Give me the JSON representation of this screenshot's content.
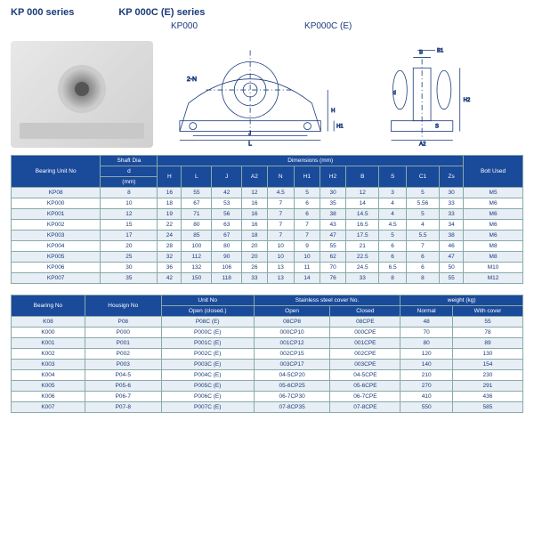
{
  "titles": {
    "t1": "KP 000 series",
    "t2": "KP 000C (E) series",
    "s1": "KP000",
    "s2": "KP000C (E)"
  },
  "table1": {
    "h1": [
      "Bearing Unit No",
      "Shaft Dia",
      "Dimensions (mm)",
      "Bolt Used"
    ],
    "h2": [
      "",
      "d",
      "H",
      "L",
      "J",
      "A2",
      "N",
      "H1",
      "H2",
      "B",
      "S",
      "C1",
      "Zs",
      ""
    ],
    "h3": [
      "",
      "(mm)",
      "",
      "",
      "",
      "",
      "",
      "",
      "",
      "",
      "",
      "",
      "",
      ""
    ],
    "rows": [
      [
        "KP08",
        "8",
        "16",
        "55",
        "42",
        "12",
        "4.5",
        "5",
        "30",
        "12",
        "3",
        "5",
        "30",
        "M5"
      ],
      [
        "KP000",
        "10",
        "18",
        "67",
        "53",
        "16",
        "7",
        "6",
        "35",
        "14",
        "4",
        "5.56",
        "33",
        "M6"
      ],
      [
        "KP001",
        "12",
        "19",
        "71",
        "56",
        "16",
        "7",
        "6",
        "38",
        "14.5",
        "4",
        "5",
        "33",
        "M6"
      ],
      [
        "KP002",
        "15",
        "22",
        "80",
        "63",
        "16",
        "7",
        "7",
        "43",
        "16.5",
        "4.5",
        "4",
        "34",
        "M6"
      ],
      [
        "KP003",
        "17",
        "24",
        "85",
        "67",
        "18",
        "7",
        "7",
        "47",
        "17.5",
        "5",
        "5.5",
        "38",
        "M6"
      ],
      [
        "KP004",
        "20",
        "28",
        "100",
        "80",
        "20",
        "10",
        "9",
        "55",
        "21",
        "6",
        "7",
        "46",
        "M8"
      ],
      [
        "KP005",
        "25",
        "32",
        "112",
        "90",
        "20",
        "10",
        "10",
        "62",
        "22.5",
        "6",
        "6",
        "47",
        "M8"
      ],
      [
        "KP006",
        "30",
        "36",
        "132",
        "106",
        "26",
        "13",
        "11",
        "70",
        "24.5",
        "6.5",
        "6",
        "50",
        "M10"
      ],
      [
        "KP007",
        "35",
        "42",
        "150",
        "118",
        "33",
        "13",
        "14",
        "76",
        "33",
        "8",
        "8",
        "55",
        "M12"
      ]
    ]
  },
  "table2": {
    "h1": [
      "Bearing No",
      "Housign No",
      "Unit No",
      "Stainless steel cover No.",
      "weight (kg)"
    ],
    "h2": [
      "",
      "",
      "Open (closed.)",
      "Open",
      "Closed",
      "Normal",
      "With cover"
    ],
    "rows": [
      [
        "K08",
        "P08",
        "P08C (E)",
        "08CP8",
        "08CPE",
        "48",
        "55"
      ],
      [
        "K000",
        "P000",
        "P000C (E)",
        "000CP10",
        "000CPE",
        "70",
        "78"
      ],
      [
        "K001",
        "P001",
        "P001C (E)",
        "001CP12",
        "001CPE",
        "80",
        "89"
      ],
      [
        "K002",
        "P002",
        "P002C (E)",
        "002CP15",
        "002CPE",
        "120",
        "130"
      ],
      [
        "K003",
        "P003",
        "P003C (E)",
        "003CP17",
        "003CPE",
        "140",
        "154"
      ],
      [
        "K004",
        "P04-5",
        "P004C (E)",
        "04-5CP20",
        "04-5CPE",
        "210",
        "230"
      ],
      [
        "K005",
        "P05-6",
        "P005C (E)",
        "05-6CP25",
        "05-6CPE",
        "270",
        "291"
      ],
      [
        "K006",
        "P06-7",
        "P006C (E)",
        "06-7CP30",
        "06-7CPE",
        "410",
        "436"
      ],
      [
        "K007",
        "P07-8",
        "P007C (E)",
        "07-8CP35",
        "07-8CPE",
        "550",
        "585"
      ]
    ]
  },
  "diag_labels": [
    "2-N",
    "L",
    "J",
    "A2",
    "H",
    "H1",
    "H2",
    "B",
    "B1",
    "S",
    "d"
  ],
  "colors": {
    "header_bg": "#1a4a9a",
    "alt_bg": "#e8eef5",
    "border": "#8aa",
    "text": "#1a3a7a"
  }
}
